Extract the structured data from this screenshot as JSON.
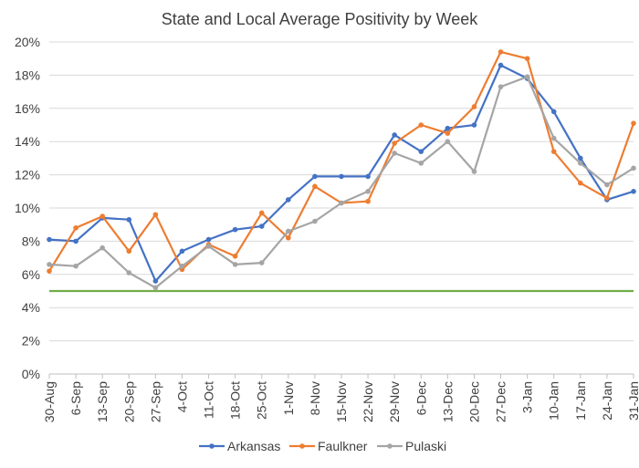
{
  "chart_data": {
    "type": "line",
    "title": "State and Local Average Positivity by Week",
    "xlabel": "",
    "ylabel": "",
    "categories": [
      "30-Aug",
      "6-Sep",
      "13-Sep",
      "20-Sep",
      "27-Sep",
      "4-Oct",
      "11-Oct",
      "18-Oct",
      "25-Oct",
      "1-Nov",
      "8-Nov",
      "15-Nov",
      "22-Nov",
      "29-Nov",
      "6-Dec",
      "13-Dec",
      "20-Dec",
      "27-Dec",
      "3-Jan",
      "10-Jan",
      "17-Jan",
      "24-Jan",
      "31-Jan"
    ],
    "ylim": [
      0,
      20
    ],
    "yticks": [
      "0%",
      "2%",
      "4%",
      "6%",
      "8%",
      "10%",
      "12%",
      "14%",
      "16%",
      "18%",
      "20%"
    ],
    "ytick_values": [
      0,
      2,
      4,
      6,
      8,
      10,
      12,
      14,
      16,
      18,
      20
    ],
    "grid": true,
    "legend_position": "bottom",
    "reference_line": {
      "value": 5,
      "color": "#70AD47"
    },
    "series": [
      {
        "name": "Arkansas",
        "color": "#4472C4",
        "values": [
          8.1,
          8.0,
          9.4,
          9.3,
          5.6,
          7.4,
          8.1,
          8.7,
          8.9,
          10.5,
          11.9,
          11.9,
          11.9,
          14.4,
          13.4,
          14.8,
          15.0,
          18.6,
          17.8,
          15.8,
          13.0,
          10.5,
          11.0
        ]
      },
      {
        "name": "Faulkner",
        "color": "#ED7D31",
        "values": [
          6.2,
          8.8,
          9.5,
          7.4,
          9.6,
          6.3,
          7.8,
          7.1,
          9.7,
          8.2,
          11.3,
          10.3,
          10.4,
          13.9,
          15.0,
          14.5,
          16.1,
          19.4,
          19.0,
          13.4,
          11.5,
          10.6,
          15.1
        ]
      },
      {
        "name": "Pulaski",
        "color": "#A5A5A5",
        "values": [
          6.6,
          6.5,
          7.6,
          6.1,
          5.2,
          6.5,
          7.7,
          6.6,
          6.7,
          8.6,
          9.2,
          10.3,
          11.0,
          13.3,
          12.7,
          14.0,
          12.2,
          17.3,
          17.9,
          14.2,
          12.7,
          11.4,
          12.4
        ]
      }
    ]
  }
}
